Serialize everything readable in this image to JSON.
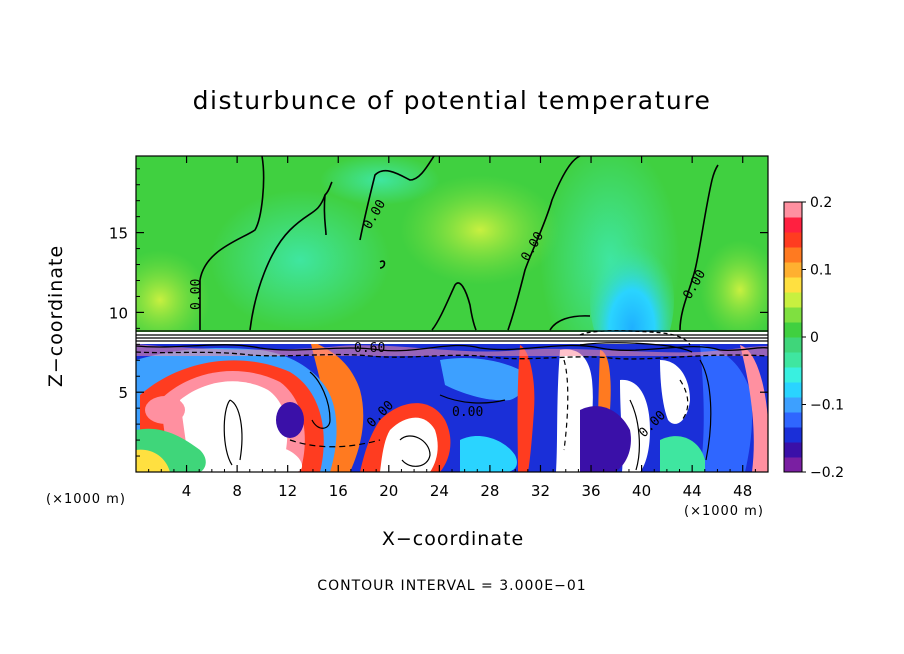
{
  "chart_data": {
    "type": "heatmap",
    "title": "disturbunce of potential temperature",
    "xlabel": "X−coordinate",
    "ylabel": "Z−coordinate",
    "x_unit_label": "(×1000 m)",
    "x_unit_label_right": "(×1000 m)",
    "x_ticks": [
      4,
      8,
      12,
      16,
      20,
      24,
      28,
      32,
      36,
      40,
      44,
      48
    ],
    "y_ticks": [
      5,
      10,
      15
    ],
    "xlim": [
      0,
      50
    ],
    "ylim": [
      0,
      19.8
    ],
    "colorbar": {
      "range": [
        -0.2,
        0.2
      ],
      "tick_labels": [
        "0.2",
        "0.1",
        "0",
        "−0.1",
        "−0.2"
      ],
      "tick_values": [
        0.2,
        0.1,
        0,
        -0.1,
        -0.2
      ],
      "colors": [
        "#7a1fa2",
        "#3a10a8",
        "#1a2fd8",
        "#2f66ff",
        "#3da0ff",
        "#2ad4ff",
        "#39f0e0",
        "#3fe6a0",
        "#3fd67a",
        "#40d040",
        "#7fe040",
        "#c8f040",
        "#ffe040",
        "#ffb030",
        "#ff7a20",
        "#ff3c20",
        "#ff2040",
        "#ff90a0"
      ]
    },
    "contour_labels": [
      "0.00",
      "0.00",
      "0.00",
      "0.00",
      "0.60",
      "0.00",
      "0.00",
      "0.00"
    ],
    "footer": "CONTOUR INTERVAL = 3.000E−01"
  }
}
